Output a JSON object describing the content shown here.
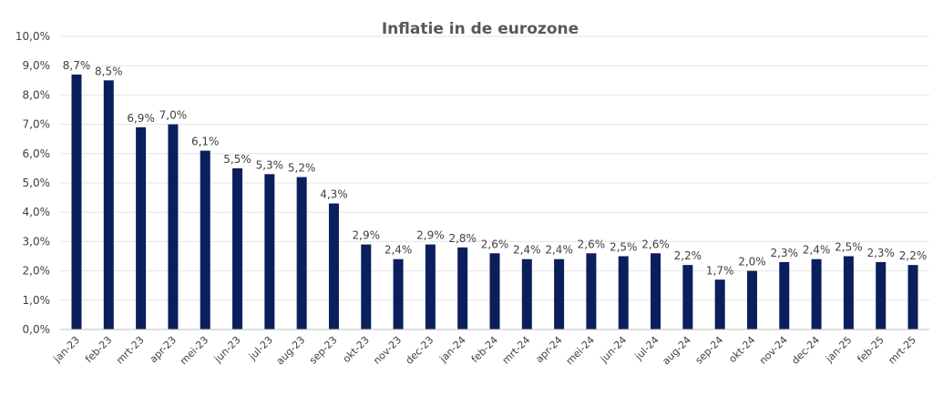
{
  "chart_data": {
    "type": "bar",
    "title": "Inflatie in de eurozone",
    "xlabel": "",
    "ylabel": "",
    "ylim": [
      0,
      10
    ],
    "grid": true,
    "legend": "none",
    "bar_color": "#0a1f5c",
    "y_ticks": [
      "0,0%",
      "1,0%",
      "2,0%",
      "3,0%",
      "4,0%",
      "5,0%",
      "6,0%",
      "7,0%",
      "8,0%",
      "9,0%",
      "10,0%"
    ],
    "categories": [
      "jan-23",
      "feb-23",
      "mrt-23",
      "apr-23",
      "mei-23",
      "jun-23",
      "jul-23",
      "aug-23",
      "sep-23",
      "okt-23",
      "nov-23",
      "dec-23",
      "jan-24",
      "feb-24",
      "mrt-24",
      "apr-24",
      "mei-24",
      "jun-24",
      "jul-24",
      "aug-24",
      "sep-24",
      "okt-24",
      "nov-24",
      "dec-24",
      "jan-25",
      "feb-25",
      "mrt-25"
    ],
    "values": [
      8.7,
      8.5,
      6.9,
      7.0,
      6.1,
      5.5,
      5.3,
      5.2,
      4.3,
      2.9,
      2.4,
      2.9,
      2.8,
      2.6,
      2.4,
      2.4,
      2.6,
      2.5,
      2.6,
      2.2,
      1.7,
      2.0,
      2.3,
      2.4,
      2.5,
      2.3,
      2.2
    ],
    "data_labels": [
      "8,7%",
      "8,5%",
      "6,9%",
      "7,0%",
      "6,1%",
      "5,5%",
      "5,3%",
      "5,2%",
      "4,3%",
      "2,9%",
      "2,4%",
      "2,9%",
      "2,8%",
      "2,6%",
      "2,4%",
      "2,4%",
      "2,6%",
      "2,5%",
      "2,6%",
      "2,2%",
      "1,7%",
      "2,0%",
      "2,3%",
      "2,4%",
      "2,5%",
      "2,3%",
      "2,2%"
    ]
  }
}
